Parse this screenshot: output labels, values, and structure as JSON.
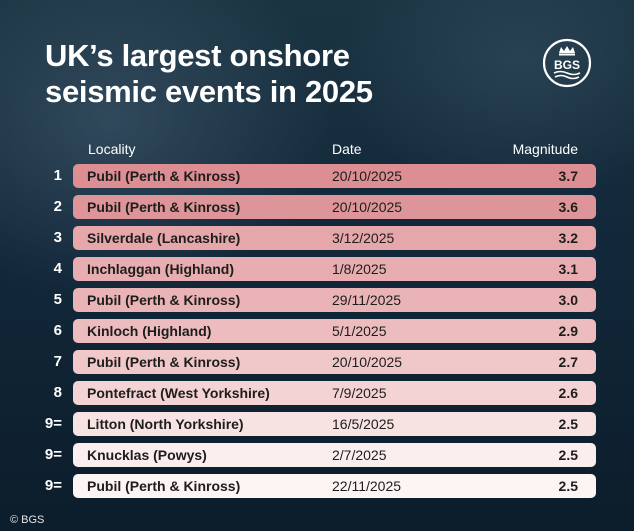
{
  "title_line1": "UK’s largest onshore",
  "title_line2": "seismic events in 2025",
  "logo_text": "BGS",
  "footer": "© BGS",
  "chart_data": {
    "type": "table",
    "columns": [
      "Locality",
      "Date",
      "Magnitude"
    ],
    "rows": [
      {
        "rank": "1",
        "locality": "Pubil (Perth & Kinross)",
        "date": "20/10/2025",
        "magnitude": "3.7",
        "color": "#dc8e92"
      },
      {
        "rank": "2",
        "locality": "Pubil (Perth & Kinross)",
        "date": "20/10/2025",
        "magnitude": "3.6",
        "color": "#de9599"
      },
      {
        "rank": "3",
        "locality": "Silverdale (Lancashire)",
        "date": "3/12/2025",
        "magnitude": "3.2",
        "color": "#e6a7aa"
      },
      {
        "rank": "4",
        "locality": "Inchlaggan (Highland)",
        "date": "1/8/2025",
        "magnitude": "3.1",
        "color": "#e8adb0"
      },
      {
        "rank": "5",
        "locality": "Pubil (Perth & Kinross)",
        "date": "29/11/2025",
        "magnitude": "3.0",
        "color": "#eab3b6"
      },
      {
        "rank": "6",
        "locality": "Kinloch (Highland)",
        "date": "5/1/2025",
        "magnitude": "2.9",
        "color": "#edbcbe"
      },
      {
        "rank": "7",
        "locality": "Pubil (Perth & Kinross)",
        "date": "20/10/2025",
        "magnitude": "2.7",
        "color": "#f1c8ca"
      },
      {
        "rank": "8",
        "locality": "Pontefract (West Yorkshire)",
        "date": "7/9/2025",
        "magnitude": "2.6",
        "color": "#f4d3d4"
      },
      {
        "rank": "9=",
        "locality": "Litton (North Yorkshire)",
        "date": "16/5/2025",
        "magnitude": "2.5",
        "color": "#f8e3e3"
      },
      {
        "rank": "9=",
        "locality": "Knucklas (Powys)",
        "date": "2/7/2025",
        "magnitude": "2.5",
        "color": "#fbeeee"
      },
      {
        "rank": "9=",
        "locality": "Pubil (Perth & Kinross)",
        "date": "22/11/2025",
        "magnitude": "2.5",
        "color": "#fdf4f4"
      }
    ]
  }
}
